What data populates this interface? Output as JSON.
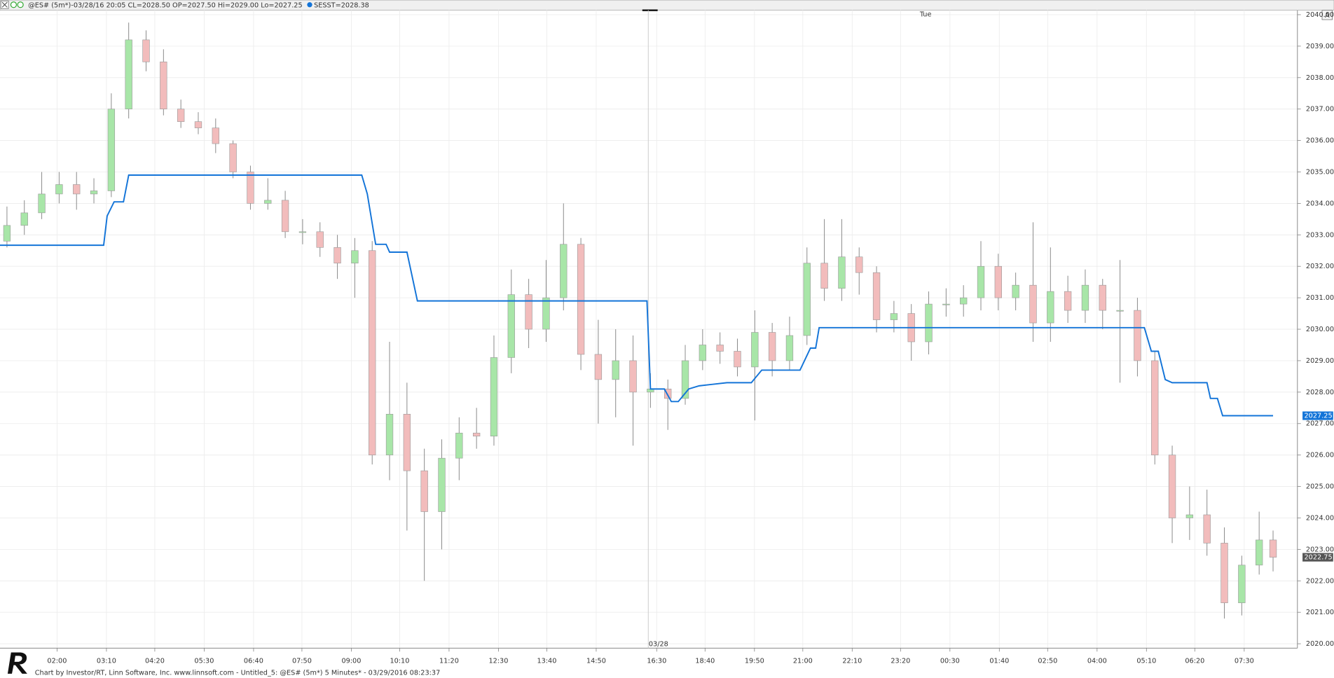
{
  "chart_data": {
    "type": "candlestick",
    "title": "@ES# (5m*)-03/28/16 20:05 CL=2028.50 OP=2027.50 Hi=2029.00 Lo=2027.25",
    "indicator_label": "SESST=2028.38",
    "day_label": "Tue",
    "date_label": "03/28",
    "corner_button": "A",
    "footer": "Chart by Investor/RT, Linn Software, Inc. www.linnsoft.com - Untitled_5: @ES# (5m*) 5 Minutes* - 03/29/2016 08:23:37",
    "up_color": "#a8e6a8",
    "down_color": "#f2bcbc",
    "grid": true,
    "xlim": [
      0,
      373
    ],
    "ylim": [
      2019.86,
      2040.14
    ],
    "xticks": [
      {
        "value": 16.4,
        "label": "02:00"
      },
      {
        "value": 30.6,
        "label": "03:10"
      },
      {
        "value": 44.5,
        "label": "04:20"
      },
      {
        "value": 58.7,
        "label": "05:30"
      },
      {
        "value": 72.9,
        "label": "06:40"
      },
      {
        "value": 86.8,
        "label": "07:50"
      },
      {
        "value": 101,
        "label": "09:00"
      },
      {
        "value": 114.9,
        "label": "10:10"
      },
      {
        "value": 129.1,
        "label": "11:20"
      },
      {
        "value": 143.3,
        "label": "12:30"
      },
      {
        "value": 157.2,
        "label": "13:40"
      },
      {
        "value": 171.4,
        "label": "14:50"
      },
      {
        "value": 188.8,
        "label": "16:30"
      },
      {
        "value": 202.7,
        "label": "18:40"
      },
      {
        "value": 216.9,
        "label": "19:50"
      },
      {
        "value": 230.8,
        "label": "21:00"
      },
      {
        "value": 245,
        "label": "22:10"
      },
      {
        "value": 258.9,
        "label": "23:20"
      },
      {
        "value": 273.1,
        "label": "00:30"
      },
      {
        "value": 287.3,
        "label": "01:40"
      },
      {
        "value": 301.2,
        "label": "02:50"
      },
      {
        "value": 315.4,
        "label": "04:00"
      },
      {
        "value": 329.6,
        "label": "05:10"
      },
      {
        "value": 343.5,
        "label": "06:20"
      },
      {
        "value": 357.7,
        "label": "07:30"
      }
    ],
    "yticks": [
      {
        "value": 2020,
        "label": "2020.00"
      },
      {
        "value": 2021,
        "label": "2021.00"
      },
      {
        "value": 2022,
        "label": "2022.00"
      },
      {
        "value": 2023,
        "label": "2023.00"
      },
      {
        "value": 2024,
        "label": "2024.00"
      },
      {
        "value": 2025,
        "label": "2025.00"
      },
      {
        "value": 2026,
        "label": "2026.00"
      },
      {
        "value": 2027,
        "label": "2027.00"
      },
      {
        "value": 2028,
        "label": "2028.00"
      },
      {
        "value": 2029,
        "label": "2029.00"
      },
      {
        "value": 2030,
        "label": "2030.00"
      },
      {
        "value": 2031,
        "label": "2031.00"
      },
      {
        "value": 2032,
        "label": "2032.00"
      },
      {
        "value": 2033,
        "label": "2033.00"
      },
      {
        "value": 2034,
        "label": "2034.00"
      },
      {
        "value": 2035,
        "label": "2035.00"
      },
      {
        "value": 2036,
        "label": "2036.00"
      },
      {
        "value": 2037,
        "label": "2037.00"
      },
      {
        "value": 2038,
        "label": "2038.00"
      },
      {
        "value": 2039,
        "label": "2039.00"
      },
      {
        "value": 2040,
        "label": "2040.00"
      }
    ],
    "x": [
      2,
      7,
      12,
      17,
      22,
      27,
      32,
      37,
      42,
      47,
      52,
      57,
      62,
      67,
      72,
      77,
      82,
      87,
      92,
      97,
      102,
      107,
      112,
      117,
      122,
      127,
      132,
      137,
      142,
      147,
      152,
      157,
      162,
      167,
      172,
      177,
      182,
      187,
      192,
      197,
      202,
      207,
      212,
      217,
      222,
      227,
      232,
      237,
      242,
      247,
      252,
      257,
      262,
      267,
      272,
      277,
      282,
      287,
      292,
      297,
      302,
      307,
      312,
      317,
      322,
      327,
      332,
      337,
      342,
      347,
      352,
      357,
      362,
      366
    ],
    "open": [
      2032.8,
      2033.3,
      2033.7,
      2034.3,
      2034.6,
      2034.3,
      2034.4,
      2037.0,
      2039.2,
      2038.5,
      2037.0,
      2036.6,
      2036.4,
      2035.9,
      2035.0,
      2034.0,
      2034.1,
      2033.1,
      2033.1,
      2032.6,
      2032.1,
      2032.5,
      2026.0,
      2027.3,
      2025.5,
      2024.2,
      2025.9,
      2026.7,
      2026.6,
      2029.1,
      2031.1,
      2030.0,
      2031.0,
      2032.7,
      2029.2,
      2028.4,
      2029.0,
      2028.0,
      2028.1,
      2027.8,
      2029.0,
      2029.5,
      2029.3,
      2028.8,
      2029.9,
      2029.0,
      2029.8,
      2032.1,
      2031.3,
      2032.3,
      2031.8,
      2030.3,
      2030.5,
      2029.6,
      2030.8,
      2030.8,
      2031.0,
      2032.0,
      2031.0,
      2031.4,
      2030.2,
      2031.2,
      2030.6,
      2031.4,
      2030.6,
      2030.6,
      2029.0,
      2026.0,
      2024.0,
      2024.1,
      2023.2,
      2021.3,
      2022.5,
      2023.3
    ],
    "high": [
      2033.9,
      2034.1,
      2035.0,
      2035.0,
      2035.0,
      2034.8,
      2037.5,
      2039.75,
      2039.5,
      2038.9,
      2037.3,
      2036.9,
      2036.7,
      2036.0,
      2035.2,
      2034.8,
      2034.4,
      2033.5,
      2033.4,
      2033.0,
      2032.9,
      2032.8,
      2029.6,
      2028.3,
      2026.2,
      2026.5,
      2027.2,
      2027.5,
      2029.8,
      2031.9,
      2031.6,
      2032.2,
      2034.0,
      2032.9,
      2030.3,
      2030.0,
      2029.8,
      2028.6,
      2028.4,
      2029.5,
      2030.0,
      2029.9,
      2029.7,
      2030.6,
      2030.2,
      2030.4,
      2032.6,
      2033.5,
      2033.5,
      2032.6,
      2032.0,
      2030.9,
      2030.8,
      2031.2,
      2031.3,
      2031.4,
      2032.8,
      2032.4,
      2031.8,
      2033.4,
      2032.6,
      2031.7,
      2031.9,
      2031.6,
      2032.2,
      2031.0,
      2029.3,
      2026.3,
      2025.0,
      2024.9,
      2023.7,
      2022.8,
      2024.2,
      2023.6
    ],
    "low": [
      2032.6,
      2033.0,
      2033.5,
      2034.0,
      2033.8,
      2034.0,
      2034.2,
      2036.7,
      2038.2,
      2036.8,
      2036.4,
      2036.2,
      2035.6,
      2034.8,
      2033.8,
      2033.8,
      2032.9,
      2032.7,
      2032.3,
      2031.6,
      2031.0,
      2025.7,
      2025.2,
      2023.6,
      2022.0,
      2023.0,
      2025.2,
      2026.2,
      2026.3,
      2028.6,
      2029.4,
      2029.6,
      2030.6,
      2028.7,
      2027.0,
      2027.2,
      2026.3,
      2027.5,
      2026.8,
      2027.6,
      2028.7,
      2028.9,
      2028.5,
      2027.1,
      2028.5,
      2028.7,
      2029.5,
      2030.9,
      2030.9,
      2031.1,
      2029.9,
      2029.9,
      2029.0,
      2029.2,
      2030.4,
      2030.4,
      2030.6,
      2030.6,
      2030.6,
      2029.6,
      2029.6,
      2030.2,
      2030.2,
      2030.0,
      2028.3,
      2028.5,
      2025.7,
      2023.2,
      2023.3,
      2022.8,
      2020.8,
      2020.9,
      2022.2,
      2022.3
    ],
    "close": [
      2033.3,
      2033.7,
      2034.3,
      2034.6,
      2034.3,
      2034.4,
      2037.0,
      2039.2,
      2038.5,
      2037.0,
      2036.6,
      2036.4,
      2035.9,
      2035.0,
      2034.0,
      2034.1,
      2033.1,
      2033.1,
      2032.6,
      2032.1,
      2032.5,
      2026.0,
      2027.3,
      2025.5,
      2024.2,
      2025.9,
      2026.7,
      2026.6,
      2029.1,
      2031.1,
      2030.0,
      2031.0,
      2032.7,
      2029.2,
      2028.4,
      2029.0,
      2028.0,
      2028.1,
      2027.8,
      2029.0,
      2029.5,
      2029.3,
      2028.8,
      2029.9,
      2029.0,
      2029.8,
      2032.1,
      2031.3,
      2032.3,
      2031.8,
      2030.3,
      2030.5,
      2029.6,
      2030.8,
      2030.8,
      2031.0,
      2032.0,
      2031.0,
      2031.4,
      2030.2,
      2031.2,
      2030.6,
      2031.4,
      2030.6,
      2030.6,
      2029.0,
      2026.0,
      2024.0,
      2024.1,
      2023.2,
      2021.3,
      2022.5,
      2023.3,
      2022.75
    ],
    "overlay": {
      "color": "#1374d8",
      "x": [
        0,
        29.8,
        30.8,
        32.8,
        35.5,
        37,
        104,
        105.6,
        106.8,
        108,
        111,
        112,
        117,
        120,
        186,
        187,
        191,
        193,
        195,
        198,
        201,
        209,
        216,
        219,
        230,
        233,
        234.5,
        235.5,
        329,
        331,
        333,
        335,
        337,
        347,
        348,
        350,
        351.5,
        366
      ],
      "values": [
        2032.67,
        2032.67,
        2033.6,
        2034.05,
        2034.05,
        2034.9,
        2034.9,
        2034.3,
        2033.5,
        2032.7,
        2032.7,
        2032.45,
        2032.45,
        2030.9,
        2030.9,
        2028.1,
        2028.1,
        2027.7,
        2027.7,
        2028.1,
        2028.2,
        2028.3,
        2028.3,
        2028.7,
        2028.7,
        2029.4,
        2029.4,
        2030.05,
        2030.05,
        2029.3,
        2029.3,
        2028.4,
        2028.3,
        2028.3,
        2027.8,
        2027.8,
        2027.25,
        2027.25
      ]
    },
    "price_markers": [
      {
        "value": 2027.25,
        "color": "#1374d8"
      },
      {
        "value": 2022.75,
        "color": "#555555"
      }
    ]
  }
}
